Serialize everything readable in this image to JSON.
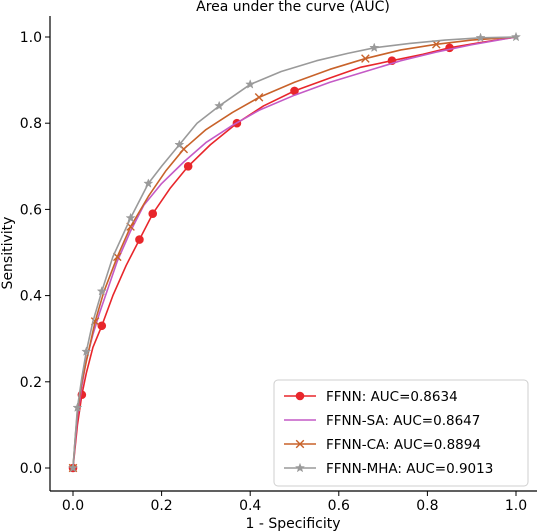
{
  "chart_data": {
    "type": "line",
    "title": "Area under the curve (AUC)",
    "xlabel": "1 - Specificity",
    "ylabel": "Sensitivity",
    "xlim": [
      0,
      1
    ],
    "ylim": [
      0,
      1
    ],
    "xticks": [
      "0.0",
      "0.2",
      "0.4",
      "0.6",
      "0.8",
      "1.0"
    ],
    "yticks": [
      "0.0",
      "0.2",
      "0.4",
      "0.6",
      "0.8",
      "1.0"
    ],
    "grid": false,
    "legend_position": "bottom-right",
    "series": [
      {
        "name": "FFNN: AUC=0.8634",
        "color": "#e8262b",
        "marker": "circle",
        "x": [
          0.0,
          0.005,
          0.01,
          0.02,
          0.03,
          0.045,
          0.065,
          0.09,
          0.12,
          0.15,
          0.18,
          0.22,
          0.26,
          0.31,
          0.37,
          0.43,
          0.5,
          0.58,
          0.65,
          0.72,
          0.79,
          0.85,
          0.92,
          1.0
        ],
        "y": [
          0.0,
          0.05,
          0.1,
          0.17,
          0.22,
          0.28,
          0.33,
          0.4,
          0.47,
          0.53,
          0.59,
          0.65,
          0.7,
          0.75,
          0.8,
          0.84,
          0.875,
          0.905,
          0.93,
          0.945,
          0.96,
          0.975,
          0.987,
          1.0
        ],
        "marker_indices": [
          0,
          3,
          6,
          9,
          10,
          12,
          14,
          16,
          19,
          21
        ]
      },
      {
        "name": "FFNN-SA: AUC=0.8647",
        "color": "#c45ac6",
        "marker": "none",
        "x": [
          0.0,
          0.005,
          0.01,
          0.02,
          0.03,
          0.045,
          0.06,
          0.08,
          0.1,
          0.13,
          0.16,
          0.2,
          0.25,
          0.3,
          0.36,
          0.42,
          0.5,
          0.58,
          0.66,
          0.74,
          0.82,
          0.9,
          1.0
        ],
        "y": [
          0.0,
          0.06,
          0.12,
          0.19,
          0.25,
          0.31,
          0.36,
          0.42,
          0.48,
          0.55,
          0.61,
          0.66,
          0.71,
          0.755,
          0.795,
          0.83,
          0.865,
          0.895,
          0.92,
          0.945,
          0.965,
          0.982,
          1.0
        ],
        "marker_indices": []
      },
      {
        "name": "FFNN-CA: AUC=0.8894",
        "color": "#c8622a",
        "marker": "x",
        "x": [
          0.0,
          0.005,
          0.01,
          0.02,
          0.035,
          0.05,
          0.07,
          0.1,
          0.13,
          0.17,
          0.21,
          0.25,
          0.3,
          0.36,
          0.42,
          0.5,
          0.58,
          0.66,
          0.74,
          0.82,
          0.9,
          1.0
        ],
        "y": [
          0.0,
          0.07,
          0.13,
          0.2,
          0.27,
          0.34,
          0.41,
          0.49,
          0.56,
          0.63,
          0.69,
          0.74,
          0.785,
          0.825,
          0.86,
          0.895,
          0.925,
          0.95,
          0.97,
          0.983,
          0.993,
          1.0
        ],
        "marker_indices": [
          0,
          5,
          7,
          8,
          11,
          14,
          17,
          19
        ]
      },
      {
        "name": "FFNN-MHA: AUC=0.9013",
        "color": "#9a9a9a",
        "marker": "star",
        "x": [
          0.0,
          0.005,
          0.01,
          0.02,
          0.03,
          0.045,
          0.065,
          0.09,
          0.13,
          0.17,
          0.2,
          0.24,
          0.28,
          0.33,
          0.4,
          0.47,
          0.55,
          0.62,
          0.68,
          0.76,
          0.84,
          0.92,
          1.0
        ],
        "y": [
          0.0,
          0.07,
          0.14,
          0.21,
          0.27,
          0.34,
          0.41,
          0.49,
          0.58,
          0.66,
          0.7,
          0.75,
          0.8,
          0.84,
          0.89,
          0.92,
          0.945,
          0.962,
          0.975,
          0.985,
          0.993,
          0.998,
          1.0
        ],
        "marker_indices": [
          0,
          2,
          4,
          6,
          8,
          9,
          11,
          13,
          14,
          18,
          21,
          22
        ]
      }
    ]
  }
}
